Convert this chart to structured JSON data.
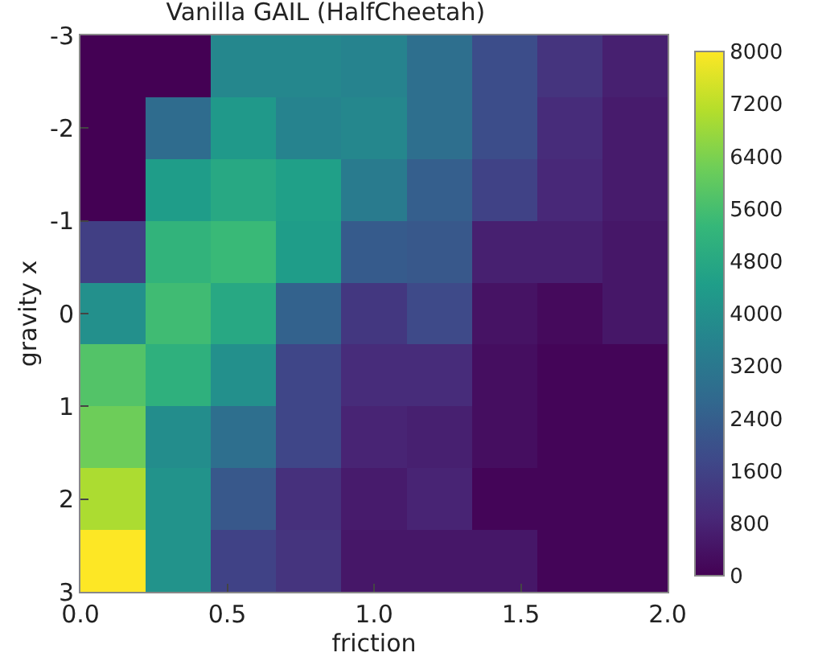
{
  "chart_data": {
    "type": "heatmap",
    "title": "Vanilla GAIL (HalfCheetah)",
    "xlabel": "friction",
    "ylabel": "gravity x",
    "xlim": [
      0,
      2
    ],
    "xticks": [
      {
        "value": 0,
        "label": "0.0"
      },
      0.5,
      {
        "value": 1,
        "label": "1.0"
      },
      1.5,
      {
        "value": 2,
        "label": "2.0"
      }
    ],
    "ylim": [
      3,
      -3
    ],
    "yticks": [
      -3,
      -2,
      -1,
      0,
      1,
      2,
      3
    ],
    "clim": [
      0,
      8000
    ],
    "cticks": [
      0,
      800,
      1600,
      2400,
      3200,
      4000,
      4800,
      5600,
      6400,
      7200,
      8000
    ],
    "cells": [
      [
        0,
        0,
        3700,
        3700,
        3600,
        2900,
        1900,
        1200,
        700
      ],
      [
        0,
        2800,
        4300,
        3600,
        3700,
        2900,
        1900,
        1000,
        600
      ],
      [
        0,
        4400,
        4800,
        4500,
        3300,
        2400,
        1600,
        900,
        600
      ],
      [
        1500,
        5200,
        5400,
        4400,
        2300,
        2200,
        700,
        700,
        500
      ],
      [
        4000,
        5500,
        4800,
        2500,
        1300,
        1800,
        400,
        200,
        500
      ],
      [
        5800,
        5100,
        4000,
        1700,
        1000,
        1000,
        300,
        100,
        100
      ],
      [
        6200,
        3900,
        2900,
        1700,
        800,
        700,
        300,
        100,
        100
      ],
      [
        7000,
        4100,
        2200,
        1100,
        600,
        800,
        100,
        100,
        100
      ],
      [
        8000,
        4100,
        1600,
        1200,
        500,
        500,
        500,
        100,
        100
      ]
    ]
  }
}
